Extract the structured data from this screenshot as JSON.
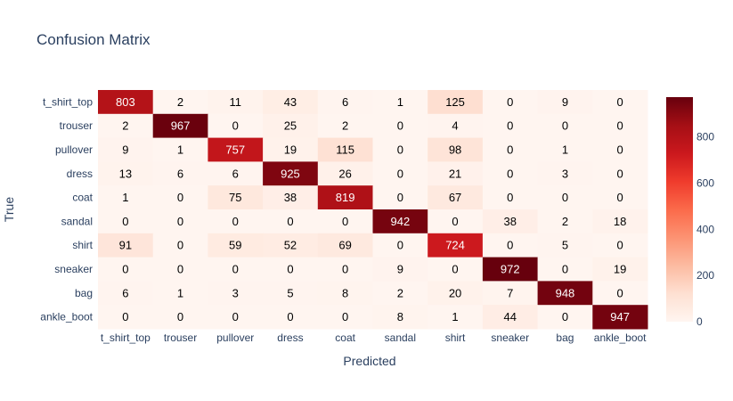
{
  "chart_data": {
    "type": "heatmap",
    "title": "Confusion Matrix",
    "xlabel": "Predicted",
    "ylabel": "True",
    "x_categories": [
      "t_shirt_top",
      "trouser",
      "pullover",
      "dress",
      "coat",
      "sandal",
      "shirt",
      "sneaker",
      "bag",
      "ankle_boot"
    ],
    "y_categories": [
      "t_shirt_top",
      "trouser",
      "pullover",
      "dress",
      "coat",
      "sandal",
      "shirt",
      "sneaker",
      "bag",
      "ankle_boot"
    ],
    "z": [
      [
        803,
        2,
        11,
        43,
        6,
        1,
        125,
        0,
        9,
        0
      ],
      [
        2,
        967,
        0,
        25,
        2,
        0,
        4,
        0,
        0,
        0
      ],
      [
        9,
        1,
        757,
        19,
        115,
        0,
        98,
        0,
        1,
        0
      ],
      [
        13,
        6,
        6,
        925,
        26,
        0,
        21,
        0,
        3,
        0
      ],
      [
        1,
        0,
        75,
        38,
        819,
        0,
        67,
        0,
        0,
        0
      ],
      [
        0,
        0,
        0,
        0,
        0,
        942,
        0,
        38,
        2,
        18
      ],
      [
        91,
        0,
        59,
        52,
        69,
        0,
        724,
        0,
        5,
        0
      ],
      [
        0,
        0,
        0,
        0,
        0,
        9,
        0,
        972,
        0,
        19
      ],
      [
        6,
        1,
        3,
        5,
        8,
        2,
        20,
        7,
        948,
        0
      ],
      [
        0,
        0,
        0,
        0,
        0,
        8,
        1,
        44,
        0,
        947
      ]
    ],
    "zmin": 0,
    "zmax": 972,
    "colorscale": "Reds",
    "colorbar": {
      "ticks": [
        0,
        200,
        400,
        600,
        800
      ],
      "position": "right"
    },
    "grid": false
  }
}
